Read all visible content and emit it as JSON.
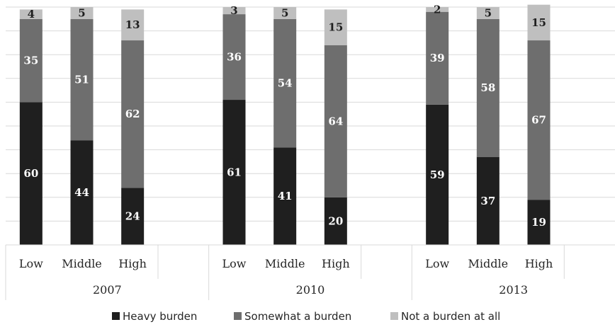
{
  "chart_data": {
    "type": "bar",
    "stacked": true,
    "orientation": "vertical",
    "title": "",
    "xlabel": "",
    "ylabel": "",
    "ylim": [
      0,
      100
    ],
    "grid": true,
    "legend_position": "bottom",
    "groups": [
      {
        "label": "2007",
        "categories": [
          "Low",
          "Middle",
          "High"
        ]
      },
      {
        "label": "2010",
        "categories": [
          "Low",
          "Middle",
          "High"
        ]
      },
      {
        "label": "2013",
        "categories": [
          "Low",
          "Middle",
          "High"
        ]
      }
    ],
    "series": [
      {
        "name": "Heavy burden",
        "color": "#1f1f1f",
        "label_color": "#ffffff",
        "values": [
          [
            60,
            44,
            24
          ],
          [
            61,
            41,
            20
          ],
          [
            59,
            37,
            19
          ]
        ]
      },
      {
        "name": "Somewhat a burden",
        "color": "#6e6e6e",
        "label_color": "#ffffff",
        "values": [
          [
            35,
            51,
            62
          ],
          [
            36,
            54,
            64
          ],
          [
            39,
            58,
            67
          ]
        ]
      },
      {
        "name": "Not a burden at all",
        "color": "#bfbfbf",
        "label_color": "#1f1f1f",
        "values": [
          [
            4,
            5,
            13
          ],
          [
            3,
            5,
            15
          ],
          [
            2,
            5,
            15
          ]
        ]
      }
    ]
  }
}
